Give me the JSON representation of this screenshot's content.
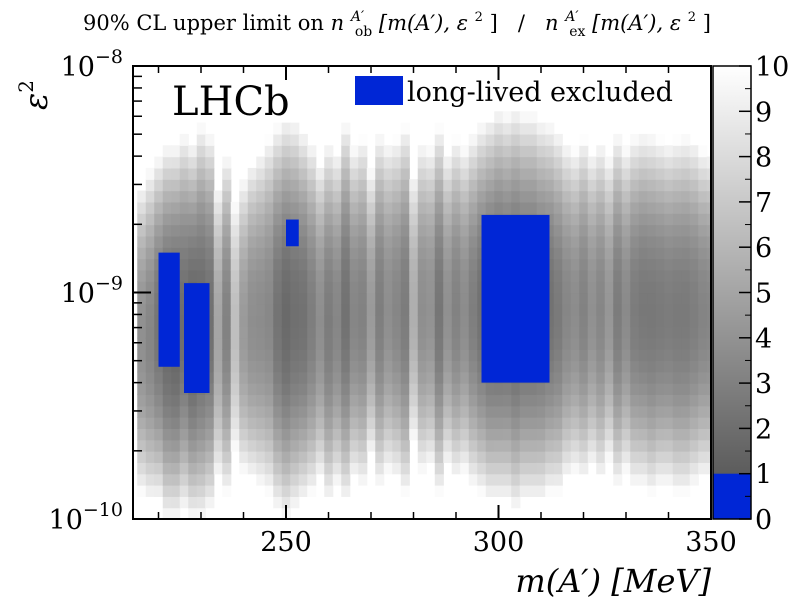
{
  "chart_data": {
    "type": "heatmap",
    "title": "90% CL upper limit on n_ob^A'[m(A'), ε²]  /  n_ex^A'[m(A'), ε²]",
    "title_parts": {
      "prefix": "90% CL upper limit on ",
      "n": "n",
      "ob_sub": "ob",
      "ex_sub": "ex",
      "sup": "A′",
      "args": "[m(A′), ε",
      "sq": "2",
      "close": "]",
      "sep": "  /  "
    },
    "xlabel": "m(A′) [MeV]",
    "ylabel": "ε²",
    "ylabel_base": "ε",
    "ylabel_sup": "2",
    "xlim": [
      214,
      350
    ],
    "ylim": [
      1e-10,
      1e-08
    ],
    "yscale": "log",
    "x_ticks": [
      "250",
      "300",
      "350"
    ],
    "x_tick_values": [
      250,
      300,
      350
    ],
    "y_ticks": [
      {
        "base": "10",
        "exp": "−8",
        "value": 1e-08
      },
      {
        "base": "10",
        "exp": "−9",
        "value": 1e-09
      },
      {
        "base": "10",
        "exp": "−10",
        "value": 1e-10
      }
    ],
    "colorbar": {
      "range": [
        0,
        10
      ],
      "ticks": [
        "0",
        "1",
        "2",
        "3",
        "4",
        "5",
        "6",
        "7",
        "8",
        "9",
        "10"
      ],
      "low_color": "#0026d6",
      "gradient_dark": "#4a4a4a",
      "gradient_light": "#ffffff"
    },
    "experiment_label": "LHCb",
    "legend": {
      "label": "long-lived excluded",
      "color": "#0026d6",
      "position": "top-right"
    },
    "excluded_regions": [
      {
        "m_range": [
          220,
          225
        ],
        "eps2_range": [
          4.7e-10,
          1.5e-09
        ]
      },
      {
        "m_range": [
          226,
          232
        ],
        "eps2_range": [
          3.6e-10,
          1.1e-09
        ]
      },
      {
        "m_range": [
          250,
          253
        ],
        "eps2_range": [
          1.6e-09,
          2.1e-09
        ]
      },
      {
        "m_range": [
          296,
          312
        ],
        "eps2_range": [
          4e-10,
          2.2e-09
        ]
      }
    ],
    "band_profile": {
      "x": [
        216,
        218,
        220,
        222,
        224,
        226,
        228,
        230,
        232,
        234,
        236,
        238,
        240,
        242,
        244,
        246,
        248,
        250,
        252,
        254,
        256,
        258,
        260,
        262,
        264,
        266,
        268,
        270,
        272,
        274,
        276,
        278,
        280,
        282,
        284,
        286,
        288,
        290,
        292,
        294,
        296,
        298,
        300,
        302,
        304,
        306,
        308,
        310,
        312,
        314,
        316,
        318,
        320,
        322,
        324,
        326,
        328,
        330,
        332,
        334,
        336,
        338,
        340,
        342,
        344,
        346,
        348,
        350
      ],
      "ratio": [
        4.5,
        4.0,
        3.2,
        2.6,
        2.4,
        2.8,
        2.3,
        2.6,
        2.9,
        5.5,
        3.8,
        6.8,
        5.0,
        4.4,
        4.3,
        4.1,
        3.1,
        2.6,
        2.9,
        3.0,
        3.6,
        4.4,
        3.5,
        4.0,
        3.0,
        4.0,
        3.8,
        5.0,
        3.6,
        4.4,
        4.0,
        3.5,
        6.0,
        4.4,
        4.6,
        3.2,
        4.5,
        3.8,
        4.3,
        3.6,
        3.0,
        2.6,
        2.5,
        2.6,
        2.4,
        2.6,
        2.6,
        2.8,
        3.0,
        3.4,
        4.0,
        4.3,
        3.8,
        4.5,
        4.0,
        4.8,
        3.5,
        4.2,
        3.5,
        3.3,
        3.3,
        3.4,
        3.5,
        3.4,
        3.4,
        3.6,
        3.9,
        4.0
      ],
      "eps2_low": [
        1.3e-10,
        1.2e-10,
        1.2e-10,
        1e-10,
        1e-10,
        1.1e-10,
        1e-10,
        1e-10,
        1.1e-10,
        1.5e-10,
        1.3e-10,
        2e-10,
        1.6e-10,
        1.5e-10,
        1.4e-10,
        1.3e-10,
        1.1e-10,
        1e-10,
        1.1e-10,
        1.2e-10,
        1.3e-10,
        1.5e-10,
        1.2e-10,
        1.4e-10,
        1.2e-10,
        1.5e-10,
        1.4e-10,
        1.9e-10,
        1.4e-10,
        1.6e-10,
        1.5e-10,
        1.3e-10,
        2.2e-10,
        1.6e-10,
        1.7e-10,
        1.3e-10,
        1.7e-10,
        1.5e-10,
        1.6e-10,
        1.4e-10,
        1.3e-10,
        1.2e-10,
        1.2e-10,
        1.2e-10,
        1.1e-10,
        1.2e-10,
        1.2e-10,
        1.2e-10,
        1.3e-10,
        1.3e-10,
        1.5e-10,
        1.6e-10,
        1.5e-10,
        1.7e-10,
        1.5e-10,
        1.8e-10,
        1.4e-10,
        1.6e-10,
        1.4e-10,
        1.4e-10,
        1.3e-10,
        1.4e-10,
        1.4e-10,
        1.3e-10,
        1.3e-10,
        1.4e-10,
        1.5e-10,
        1.5e-10
      ],
      "eps2_high": [
        3e-09,
        3.5e-09,
        4e-09,
        4.5e-09,
        4.5e-09,
        5e-09,
        4.6e-09,
        5.5e-09,
        5e-09,
        3e-09,
        4e-09,
        2.5e-09,
        3.2e-09,
        3.8e-09,
        4.2e-09,
        4.8e-09,
        5.5e-09,
        6e-09,
        5.8e-09,
        5.2e-09,
        4.6e-09,
        3.8e-09,
        4.6e-09,
        4.2e-09,
        5.6e-09,
        4.4e-09,
        4.8e-09,
        3.5e-09,
        5e-09,
        4.6e-09,
        4.8e-09,
        5.4e-09,
        3.4e-09,
        4.6e-09,
        4.4e-09,
        5.4e-09,
        4.2e-09,
        4.8e-09,
        4.4e-09,
        5e-09,
        5.6e-09,
        6e-09,
        6.5e-09,
        6.2e-09,
        6.6e-09,
        6.2e-09,
        6.2e-09,
        5.8e-09,
        5.6e-09,
        5.2e-09,
        4.6e-09,
        4.3e-09,
        4.8e-09,
        4.2e-09,
        4.6e-09,
        4e-09,
        5e-09,
        4.4e-09,
        4.9e-09,
        5.1e-09,
        5e-09,
        4.8e-09,
        4.6e-09,
        4.8e-09,
        4.9e-09,
        4.7e-09,
        4.3e-09,
        4.2e-09
      ]
    }
  }
}
